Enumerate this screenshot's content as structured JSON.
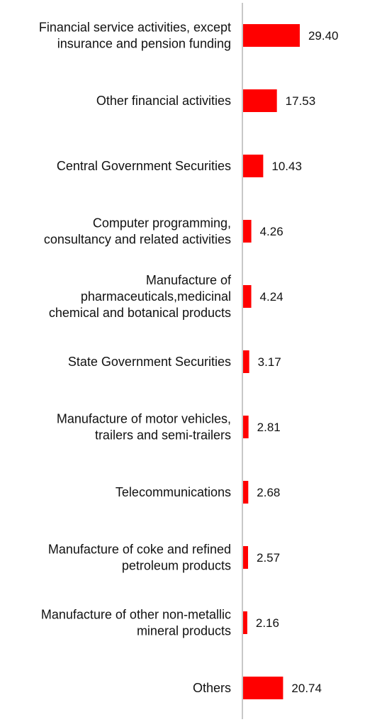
{
  "chart_data": {
    "type": "bar",
    "orientation": "horizontal",
    "categories": [
      [
        "Financial service activities, except",
        "insurance and pension funding"
      ],
      [
        "Other financial activities"
      ],
      [
        "Central Government Securities"
      ],
      [
        "Computer programming,",
        "consultancy and related activities"
      ],
      [
        "Manufacture of",
        "pharmaceuticals,medicinal",
        "chemical and botanical products"
      ],
      [
        "State Government Securities"
      ],
      [
        "Manufacture of motor vehicles,",
        "trailers and semi-trailers"
      ],
      [
        "Telecommunications"
      ],
      [
        "Manufacture of coke and refined",
        "petroleum products"
      ],
      [
        "Manufacture of other non-metallic",
        "mineral products"
      ],
      [
        "Others"
      ]
    ],
    "values": [
      29.4,
      17.53,
      10.43,
      4.26,
      4.24,
      3.17,
      2.81,
      2.68,
      2.57,
      2.16,
      20.74
    ],
    "value_labels": [
      "29.40",
      "17.53",
      "10.43",
      "4.26",
      "4.24",
      "3.17",
      "2.81",
      "2.68",
      "2.57",
      "2.16",
      "20.74"
    ],
    "bar_color": "#ff0000",
    "axis_color": "#c8c8c8",
    "grid": false,
    "legend": "none"
  }
}
